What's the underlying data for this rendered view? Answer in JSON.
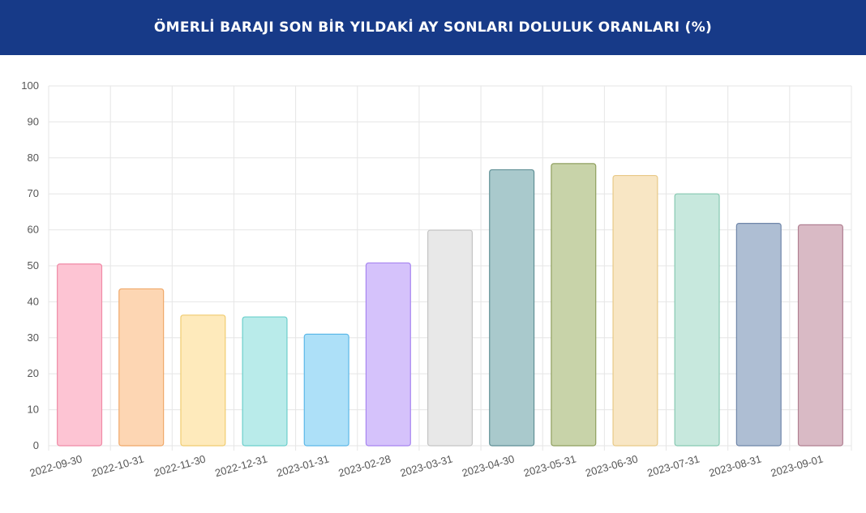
{
  "header": {
    "title": "ÖMERLİ BARAJI SON BİR YILDAKİ AY SONLARI DOLULUK ORANLARI (%)"
  },
  "chart_data": {
    "type": "bar",
    "title": "ÖMERLİ BARAJI SON BİR YILDAKİ AY SONLARI DOLULUK ORANLARI (%)",
    "xlabel": "",
    "ylabel": "",
    "ylim": [
      0,
      100
    ],
    "yticks": [
      0,
      10,
      20,
      30,
      40,
      50,
      60,
      70,
      80,
      90,
      100
    ],
    "grid": true,
    "legend": "none",
    "categories": [
      "2022-09-30",
      "2022-10-31",
      "2022-11-30",
      "2022-12-31",
      "2023-01-31",
      "2023-02-28",
      "2023-03-31",
      "2023-04-30",
      "2023-05-31",
      "2023-06-30",
      "2023-07-31",
      "2023-08-31",
      "2023-09-01"
    ],
    "values": [
      50.5,
      43.6,
      36.3,
      35.8,
      31.0,
      50.8,
      59.9,
      76.7,
      78.4,
      75.1,
      70.0,
      61.8,
      61.4
    ],
    "fill_colors": [
      "#fdc4d3",
      "#fdd6b3",
      "#feeabb",
      "#b9ebea",
      "#ade0f8",
      "#d5c2fb",
      "#e8e8e8",
      "#a9c9cc",
      "#c8d3a9",
      "#f8e6c4",
      "#c7e8dd",
      "#aebed3",
      "#d9bac5"
    ],
    "stroke_colors": [
      "#f08aa6",
      "#f0a868",
      "#f0cc70",
      "#6ccfcc",
      "#5cb8e8",
      "#a684f0",
      "#c4c4c4",
      "#5f8f95",
      "#8f9f5e",
      "#e8c987",
      "#86c9b2",
      "#6f86a9",
      "#b07f91"
    ]
  }
}
